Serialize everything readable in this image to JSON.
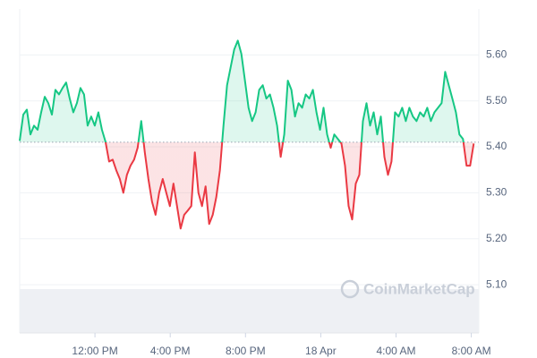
{
  "chart_data": {
    "type": "line",
    "watermark": "CoinMarketCap",
    "baseline": 5.41,
    "up_color": "#16c784",
    "down_color": "#ea3943",
    "xlim": [
      8,
      32.4
    ],
    "ylim": [
      4.995,
      5.7
    ],
    "xticks": [
      {
        "value": 12,
        "label": "12:00 PM"
      },
      {
        "value": 16,
        "label": "4:00 PM"
      },
      {
        "value": 20,
        "label": "8:00 PM"
      },
      {
        "value": 24,
        "label": "18 Apr"
      },
      {
        "value": 28,
        "label": "4:00 AM"
      },
      {
        "value": 32,
        "label": "8:00 AM"
      }
    ],
    "yticks": [
      {
        "value": 5.1,
        "label": "5.10"
      },
      {
        "value": 5.2,
        "label": "5.20"
      },
      {
        "value": 5.3,
        "label": "5.30"
      },
      {
        "value": 5.4,
        "label": "5.40"
      },
      {
        "value": 5.5,
        "label": "5.50"
      },
      {
        "value": 5.6,
        "label": "5.60"
      }
    ],
    "grid": true,
    "x": [
      8,
      8.19,
      8.38,
      8.57,
      8.76,
      8.95,
      9.14,
      9.33,
      9.52,
      9.71,
      9.9,
      10.09,
      10.28,
      10.47,
      10.66,
      10.85,
      11.04,
      11.23,
      11.42,
      11.61,
      11.8,
      11.99,
      12.18,
      12.37,
      12.56,
      12.75,
      12.94,
      13.13,
      13.32,
      13.51,
      13.7,
      13.89,
      14.08,
      14.27,
      14.46,
      14.65,
      14.84,
      15.03,
      15.22,
      15.41,
      15.6,
      15.79,
      15.98,
      16.17,
      16.36,
      16.55,
      16.74,
      16.93,
      17.12,
      17.31,
      17.5,
      17.69,
      17.88,
      18.07,
      18.26,
      18.45,
      18.64,
      18.83,
      19.02,
      19.21,
      19.4,
      19.59,
      19.78,
      19.97,
      20.16,
      20.35,
      20.54,
      20.73,
      20.92,
      21.11,
      21.3,
      21.49,
      21.68,
      21.87,
      22.06,
      22.25,
      22.44,
      22.63,
      22.82,
      23.01,
      23.2,
      23.39,
      23.58,
      23.77,
      23.96,
      24.15,
      24.34,
      24.53,
      24.72,
      24.91,
      25.1,
      25.29,
      25.48,
      25.67,
      25.86,
      26.05,
      26.24,
      26.43,
      26.62,
      26.81,
      27,
      27.19,
      27.38,
      27.57,
      27.76,
      27.95,
      28.14,
      28.33,
      28.52,
      28.71,
      28.9,
      29.09,
      29.28,
      29.47,
      29.66,
      29.85,
      30.04,
      30.23,
      30.42,
      30.61,
      30.8,
      30.99,
      31.18,
      31.37,
      31.56,
      31.75,
      31.94,
      32.13
    ],
    "values": [
      5.413,
      5.47,
      5.481,
      5.427,
      5.446,
      5.437,
      5.475,
      5.509,
      5.495,
      5.47,
      5.524,
      5.514,
      5.528,
      5.54,
      5.505,
      5.475,
      5.495,
      5.528,
      5.514,
      5.446,
      5.466,
      5.446,
      5.475,
      5.437,
      5.411,
      5.368,
      5.372,
      5.349,
      5.33,
      5.3,
      5.339,
      5.359,
      5.372,
      5.398,
      5.456,
      5.388,
      5.33,
      5.281,
      5.252,
      5.3,
      5.33,
      5.3,
      5.271,
      5.32,
      5.271,
      5.222,
      5.252,
      5.261,
      5.271,
      5.388,
      5.3,
      5.271,
      5.314,
      5.232,
      5.252,
      5.291,
      5.349,
      5.446,
      5.534,
      5.573,
      5.612,
      5.631,
      5.602,
      5.544,
      5.485,
      5.456,
      5.475,
      5.524,
      5.534,
      5.505,
      5.514,
      5.485,
      5.446,
      5.378,
      5.427,
      5.544,
      5.524,
      5.466,
      5.495,
      5.485,
      5.514,
      5.505,
      5.524,
      5.475,
      5.437,
      5.485,
      5.427,
      5.398,
      5.427,
      5.417,
      5.407,
      5.359,
      5.271,
      5.242,
      5.32,
      5.339,
      5.456,
      5.495,
      5.446,
      5.475,
      5.427,
      5.466,
      5.378,
      5.339,
      5.368,
      5.475,
      5.466,
      5.485,
      5.456,
      5.485,
      5.466,
      5.456,
      5.475,
      5.466,
      5.485,
      5.456,
      5.475,
      5.485,
      5.495,
      5.563,
      5.534,
      5.505,
      5.475,
      5.427,
      5.417,
      5.359,
      5.359,
      5.407
    ]
  }
}
